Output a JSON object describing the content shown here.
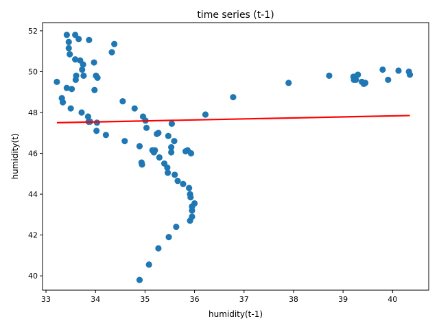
{
  "chart_data": {
    "type": "scatter",
    "title": "time series (t-1)",
    "xlabel": "humidity(t-1)",
    "ylabel": "humidity(t)",
    "xlim": [
      32.93,
      40.73
    ],
    "ylim": [
      39.3,
      52.4
    ],
    "xticks": [
      33,
      34,
      35,
      36,
      37,
      38,
      39,
      40
    ],
    "yticks": [
      40,
      42,
      44,
      46,
      48,
      50,
      52
    ],
    "grid": false,
    "legend": "none",
    "colors": {
      "points": "#1f77b4",
      "fit_line": "#ff0000"
    },
    "series": [
      {
        "type": "scatter",
        "points": [
          [
            33.42,
            51.8
          ],
          [
            33.59,
            51.8
          ],
          [
            33.46,
            51.45
          ],
          [
            33.66,
            51.6
          ],
          [
            33.87,
            51.55
          ],
          [
            33.46,
            51.15
          ],
          [
            34.38,
            51.35
          ],
          [
            34.33,
            50.95
          ],
          [
            33.48,
            50.85
          ],
          [
            33.59,
            50.6
          ],
          [
            33.69,
            50.55
          ],
          [
            33.75,
            50.35
          ],
          [
            33.97,
            50.45
          ],
          [
            33.73,
            50.1
          ],
          [
            33.61,
            49.8
          ],
          [
            33.76,
            49.8
          ],
          [
            34.01,
            49.8
          ],
          [
            34.04,
            49.7
          ],
          [
            33.6,
            49.6
          ],
          [
            33.22,
            49.5
          ],
          [
            33.42,
            49.2
          ],
          [
            33.52,
            49.15
          ],
          [
            33.98,
            49.1
          ],
          [
            33.32,
            48.7
          ],
          [
            33.34,
            48.5
          ],
          [
            34.55,
            48.55
          ],
          [
            34.79,
            48.2
          ],
          [
            33.5,
            48.2
          ],
          [
            33.72,
            48.0
          ],
          [
            34.96,
            47.8
          ],
          [
            33.85,
            47.8
          ],
          [
            35.01,
            47.6
          ],
          [
            33.86,
            47.55
          ],
          [
            33.89,
            47.55
          ],
          [
            34.03,
            47.5
          ],
          [
            35.54,
            47.45
          ],
          [
            35.03,
            47.25
          ],
          [
            34.02,
            47.1
          ],
          [
            35.27,
            47.0
          ],
          [
            35.24,
            46.95
          ],
          [
            34.21,
            46.9
          ],
          [
            35.47,
            46.85
          ],
          [
            35.59,
            46.6
          ],
          [
            34.59,
            46.6
          ],
          [
            34.89,
            46.35
          ],
          [
            35.53,
            46.3
          ],
          [
            35.2,
            46.15
          ],
          [
            35.15,
            46.15
          ],
          [
            35.86,
            46.15
          ],
          [
            35.82,
            46.1
          ],
          [
            35.18,
            46.05
          ],
          [
            35.53,
            46.05
          ],
          [
            35.93,
            46.0
          ],
          [
            35.29,
            45.8
          ],
          [
            34.93,
            45.55
          ],
          [
            34.94,
            45.45
          ],
          [
            35.39,
            45.5
          ],
          [
            35.45,
            45.3
          ],
          [
            35.6,
            44.95
          ],
          [
            35.46,
            45.05
          ],
          [
            35.66,
            44.65
          ],
          [
            35.77,
            44.5
          ],
          [
            35.89,
            44.3
          ],
          [
            35.91,
            44.0
          ],
          [
            35.92,
            43.85
          ],
          [
            36.0,
            43.55
          ],
          [
            35.95,
            43.4
          ],
          [
            35.95,
            43.2
          ],
          [
            35.95,
            42.9
          ],
          [
            35.91,
            42.7
          ],
          [
            35.63,
            42.4
          ],
          [
            35.48,
            41.9
          ],
          [
            35.27,
            41.35
          ],
          [
            35.08,
            40.55
          ],
          [
            34.89,
            39.8
          ],
          [
            36.22,
            47.9
          ],
          [
            36.78,
            48.75
          ],
          [
            37.9,
            49.45
          ],
          [
            38.72,
            49.8
          ],
          [
            39.21,
            49.75
          ],
          [
            39.22,
            49.6
          ],
          [
            39.26,
            49.6
          ],
          [
            39.3,
            49.85
          ],
          [
            39.38,
            49.5
          ],
          [
            39.42,
            49.4
          ],
          [
            39.45,
            49.45
          ],
          [
            39.8,
            50.1
          ],
          [
            39.91,
            49.6
          ],
          [
            40.12,
            50.05
          ],
          [
            40.33,
            50.0
          ],
          [
            40.35,
            49.85
          ]
        ]
      },
      {
        "type": "line",
        "points": [
          [
            33.22,
            47.5
          ],
          [
            40.35,
            47.85
          ]
        ]
      }
    ]
  }
}
